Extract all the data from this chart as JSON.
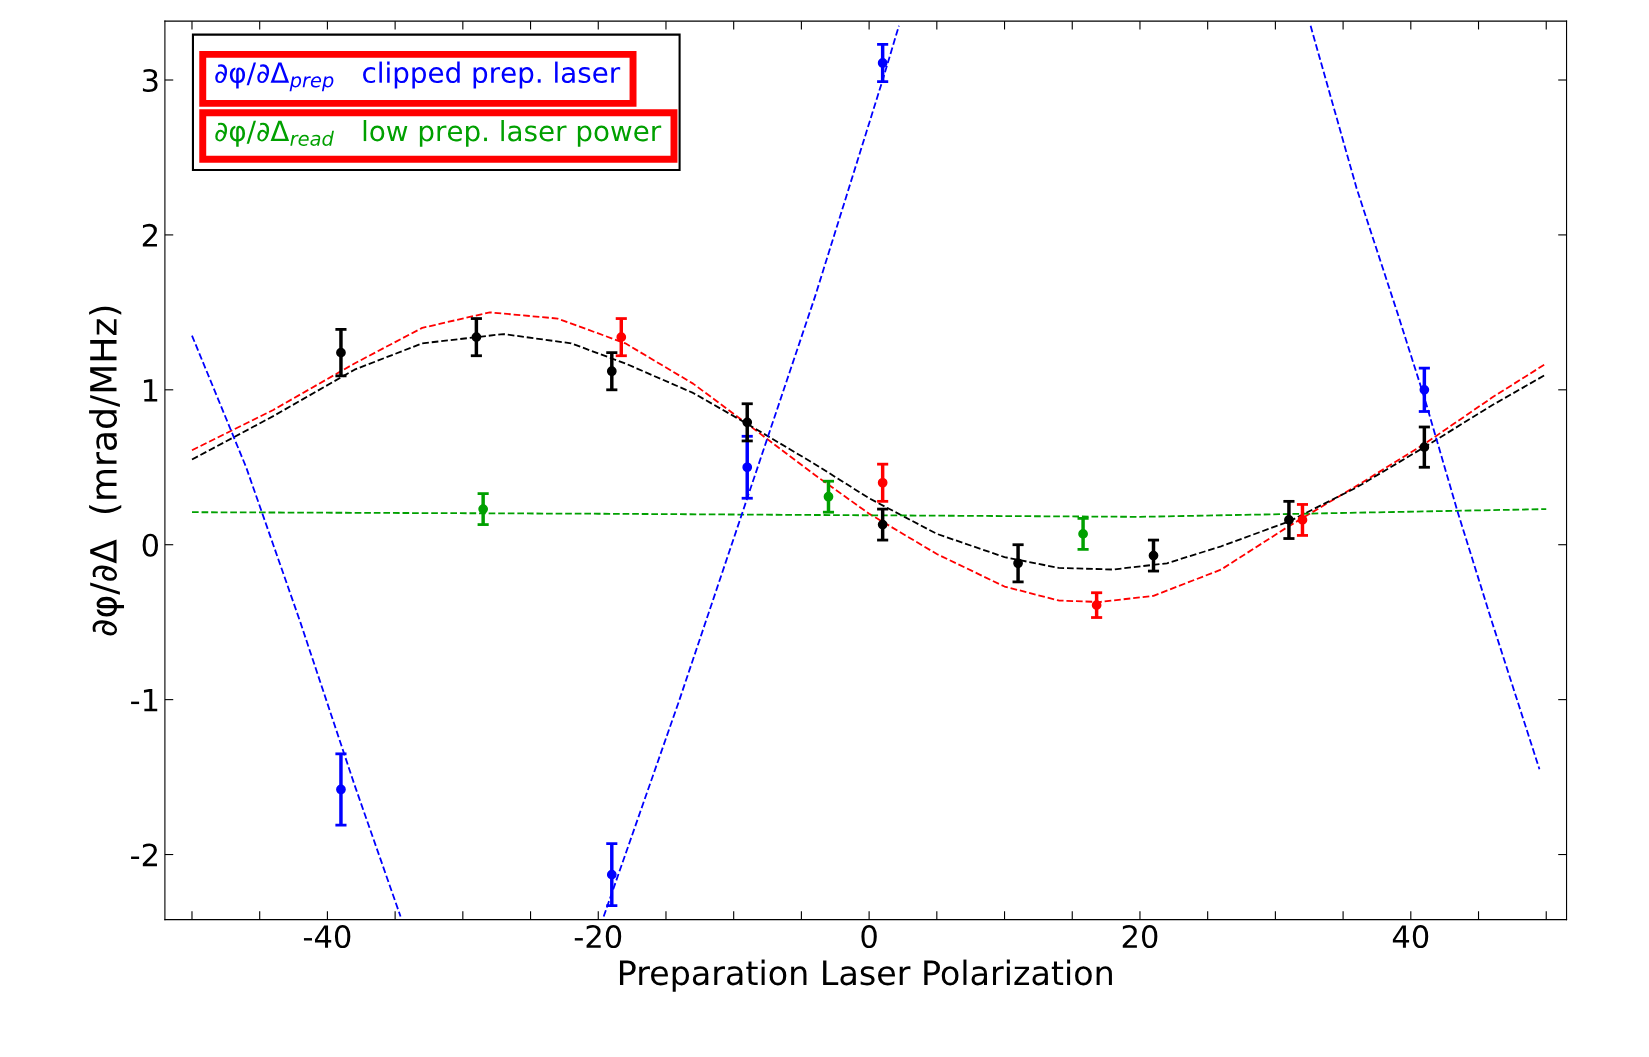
{
  "chart_data": {
    "type": "scatter",
    "xlabel": "Preparation Laser Polarization",
    "ylabel": "∂φ/∂Δ  (mrad/MHz)",
    "xlim": [
      -52,
      51.5
    ],
    "ylim": [
      -2.42,
      3.38
    ],
    "xticks": [
      -40,
      -20,
      0,
      20,
      40,
      {
        "value": -50,
        "label": null
      },
      {
        "value": -45,
        "label": null
      },
      {
        "value": -35,
        "label": null
      },
      {
        "value": -30,
        "label": null
      },
      {
        "value": -25,
        "label": null
      },
      {
        "value": -15,
        "label": null
      },
      {
        "value": -10,
        "label": null
      },
      {
        "value": -5,
        "label": null
      },
      {
        "value": 5,
        "label": null
      },
      {
        "value": 10,
        "label": null
      },
      {
        "value": 15,
        "label": null
      },
      {
        "value": 25,
        "label": null
      },
      {
        "value": 30,
        "label": null
      },
      {
        "value": 35,
        "label": null
      },
      {
        "value": 45,
        "label": null
      },
      {
        "value": 50,
        "label": null
      }
    ],
    "yticks": [
      -2,
      -1,
      0,
      1,
      2,
      3
    ],
    "grid": false,
    "marker": "circle",
    "series": [
      {
        "name": "∂φ/∂Δ$_{prep}$   clipped prep. laser",
        "color": "#0000ff",
        "x": [
          -39,
          -19,
          -9,
          1,
          41
        ],
        "values": [
          -1.58,
          -2.13,
          0.5,
          3.11,
          1.0
        ],
        "errors": [
          0.23,
          0.2,
          0.2,
          0.12,
          0.14
        ]
      },
      {
        "name": "∂φ/∂Δ$_{read}$   low prep. laser power",
        "color": "#00a000",
        "x": [
          -28.5,
          -3,
          15.8
        ],
        "values": [
          0.23,
          0.31,
          0.07
        ],
        "errors": [
          0.1,
          0.1,
          0.1
        ]
      },
      {
        "color": "#000000",
        "x": [
          -39,
          -29,
          -19,
          -9,
          1,
          11,
          21,
          31,
          41
        ],
        "values": [
          1.24,
          1.34,
          1.12,
          0.79,
          0.13,
          -0.12,
          -0.07,
          0.16,
          0.63
        ],
        "errors": [
          0.15,
          0.12,
          0.12,
          0.12,
          0.1,
          0.12,
          0.1,
          0.12,
          0.13
        ]
      },
      {
        "color": "#ff0000",
        "x": [
          -18.3,
          1,
          16.8,
          32
        ],
        "values": [
          1.34,
          0.4,
          -0.39,
          0.16
        ],
        "errors": [
          0.12,
          0.12,
          0.08,
          0.1
        ]
      },
      {
        "color": "#ff0000",
        "type": "line",
        "line_style": "dashed",
        "marker": "none",
        "x": [
          -50,
          -44,
          -38,
          -33,
          -28,
          -23,
          -18,
          -13,
          -9,
          -4,
          0,
          5,
          10,
          14,
          17,
          21,
          26,
          31,
          36,
          41,
          46,
          50
        ],
        "values": [
          0.61,
          0.87,
          1.17,
          1.4,
          1.5,
          1.46,
          1.3,
          1.04,
          0.78,
          0.45,
          0.2,
          -0.06,
          -0.27,
          -0.36,
          -0.37,
          -0.33,
          -0.16,
          0.12,
          0.38,
          0.65,
          0.95,
          1.17
        ]
      },
      {
        "color": "#000000",
        "type": "line",
        "line_style": "dashed",
        "marker": "none",
        "x": [
          -50,
          -44,
          -38,
          -33,
          -27,
          -22,
          -18,
          -13,
          -9,
          -4,
          0,
          5,
          10,
          14,
          18,
          22,
          26,
          31,
          36,
          41,
          46,
          50
        ],
        "values": [
          0.55,
          0.83,
          1.13,
          1.3,
          1.36,
          1.3,
          1.17,
          0.98,
          0.78,
          0.52,
          0.3,
          0.07,
          -0.08,
          -0.15,
          -0.16,
          -0.12,
          -0.01,
          0.15,
          0.37,
          0.63,
          0.9,
          1.1
        ]
      },
      {
        "color": "#00a000",
        "type": "line",
        "line_style": "dashed",
        "marker": "none",
        "x": [
          -50,
          -20,
          0,
          20,
          50
        ],
        "values": [
          0.21,
          0.2,
          0.19,
          0.18,
          0.23
        ]
      },
      {
        "color": "#0000ff",
        "type": "line",
        "line_style": "dashed",
        "marker": "none",
        "x": [
          -50,
          -46,
          -42,
          -38,
          -34.6,
          null,
          -19.6,
          -14,
          -9,
          -4,
          1,
          2.2,
          null,
          32.6,
          36,
          39,
          41,
          43.5,
          46,
          49.5
        ],
        "values": [
          1.35,
          0.5,
          -0.5,
          -1.55,
          -2.4,
          null,
          -2.4,
          -1.0,
          0.3,
          1.6,
          3.0,
          3.35,
          null,
          3.35,
          2.3,
          1.5,
          0.95,
          0.2,
          -0.5,
          -1.45
        ]
      }
    ]
  }
}
